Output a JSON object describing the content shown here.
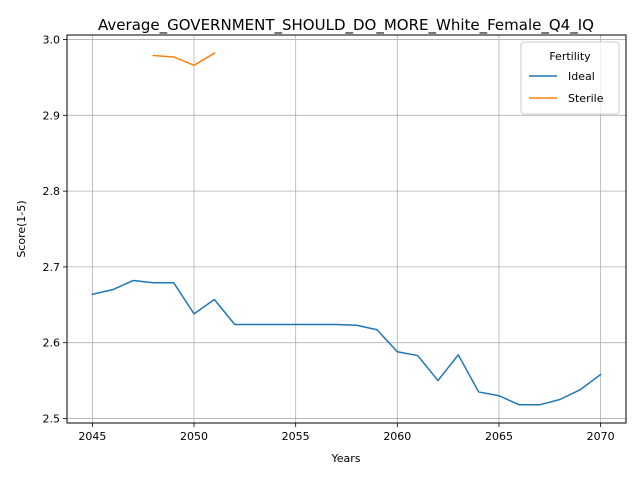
{
  "chart_data": {
    "type": "line",
    "title": "Average_GOVERNMENT_SHOULD_DO_MORE_White_Female_Q4_IQ",
    "xlabel": "Years",
    "ylabel": "Score(1-5)",
    "xlim": [
      2043.75,
      2071.25
    ],
    "ylim": [
      2.494,
      3.006
    ],
    "xticks": [
      2045,
      2050,
      2055,
      2060,
      2065,
      2070
    ],
    "yticks": [
      2.5,
      2.6,
      2.7,
      2.8,
      2.9,
      3.0
    ],
    "xtick_labels": [
      "2045",
      "2050",
      "2055",
      "2060",
      "2065",
      "2070"
    ],
    "ytick_labels": [
      "2.5",
      "2.6",
      "2.7",
      "2.8",
      "2.9",
      "3.0"
    ],
    "grid": true,
    "legend": {
      "title": "Fertility",
      "placement": "top-right"
    },
    "series": [
      {
        "name": "Ideal",
        "color": "#1f77b4",
        "x": [
          2045,
          2046,
          2047,
          2048,
          2049,
          2050,
          2051,
          2052,
          2053,
          2054,
          2055,
          2056,
          2057,
          2058,
          2059,
          2060,
          2061,
          2062,
          2063,
          2064,
          2065,
          2066,
          2067,
          2068,
          2069,
          2070
        ],
        "y": [
          2.664,
          2.67,
          2.682,
          2.679,
          2.679,
          2.638,
          2.657,
          2.624,
          2.624,
          2.624,
          2.624,
          2.624,
          2.624,
          2.623,
          2.617,
          2.588,
          2.583,
          2.55,
          2.584,
          2.535,
          2.53,
          2.518,
          2.518,
          2.525,
          2.538,
          2.558
        ]
      },
      {
        "name": "Sterile",
        "color": "#ff7f0e",
        "x": [
          2048,
          2049,
          2050,
          2051
        ],
        "y": [
          2.979,
          2.977,
          2.966,
          2.982
        ]
      }
    ]
  }
}
